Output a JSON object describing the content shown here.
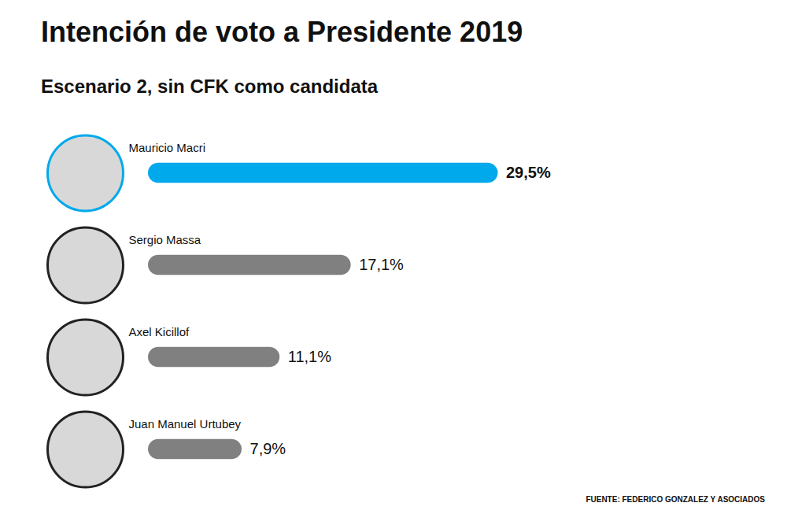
{
  "chart_data": {
    "type": "bar",
    "orientation": "horizontal",
    "title": "Intención de voto a Presidente 2019",
    "subtitle": "Escenario 2, sin CFK como candidata",
    "source": "FUENTE: FEDERICO GONZALEZ Y ASOCIADOS",
    "categories": [
      "Mauricio Macri",
      "Sergio Massa",
      "Axel Kicillof",
      "Juan Manuel Urtubey"
    ],
    "values": [
      29.5,
      17.1,
      11.1,
      7.9
    ],
    "value_labels": [
      "29,5%",
      "17,1%",
      "11,1%",
      "7,9%"
    ],
    "colors": [
      "#00a9ec",
      "#808080",
      "#808080",
      "#808080"
    ],
    "xlim": [
      0,
      30
    ],
    "data_labels": true,
    "tick_labels": false,
    "grid": false
  }
}
